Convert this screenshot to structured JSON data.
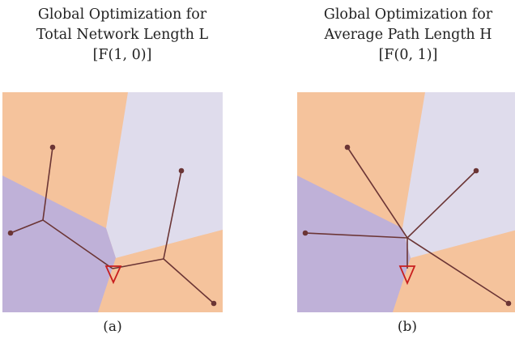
{
  "panels": [
    {
      "title_lines": [
        "Global Optimization for",
        "Total Network Length L",
        "[F(1, 0)]"
      ],
      "caption": "(a)"
    },
    {
      "title_lines": [
        "Global Optimization for",
        "Average Path Length H",
        "[F(0, 1)]"
      ],
      "caption": "(b)"
    }
  ],
  "colors": {
    "region_orange": "#f5c39c",
    "region_lavender": "#dfdcec",
    "region_purple": "#bfb1d8",
    "edge": "#6b3535",
    "node": "#6b3535",
    "sink_outline": "#c81e1e"
  }
}
